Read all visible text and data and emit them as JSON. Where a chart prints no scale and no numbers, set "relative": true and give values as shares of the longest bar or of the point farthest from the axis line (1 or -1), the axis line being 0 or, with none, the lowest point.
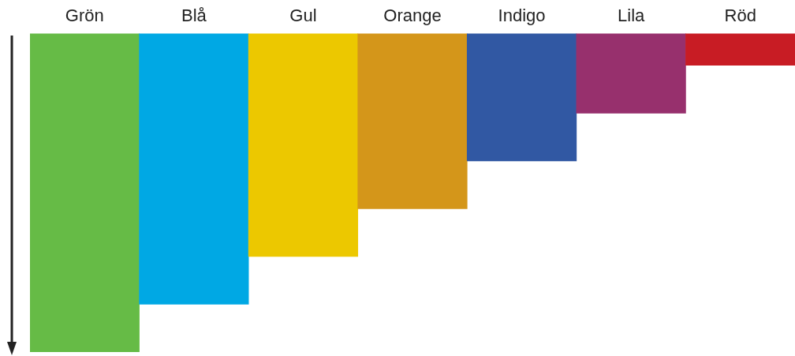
{
  "chart_data": {
    "type": "bar",
    "relative": true,
    "categories": [
      "Grön",
      "Blå",
      "Gul",
      "Orange",
      "Indigo",
      "Lila",
      "Röd"
    ],
    "values": [
      -1,
      -0.85,
      -0.7,
      -0.55,
      -0.4,
      -0.25,
      -0.1
    ],
    "colors": [
      "#66bb46",
      "#00a8e4",
      "#ecc800",
      "#d4961a",
      "#3158a3",
      "#97306d",
      "#c81c24"
    ],
    "grid": false,
    "legend": false
  }
}
